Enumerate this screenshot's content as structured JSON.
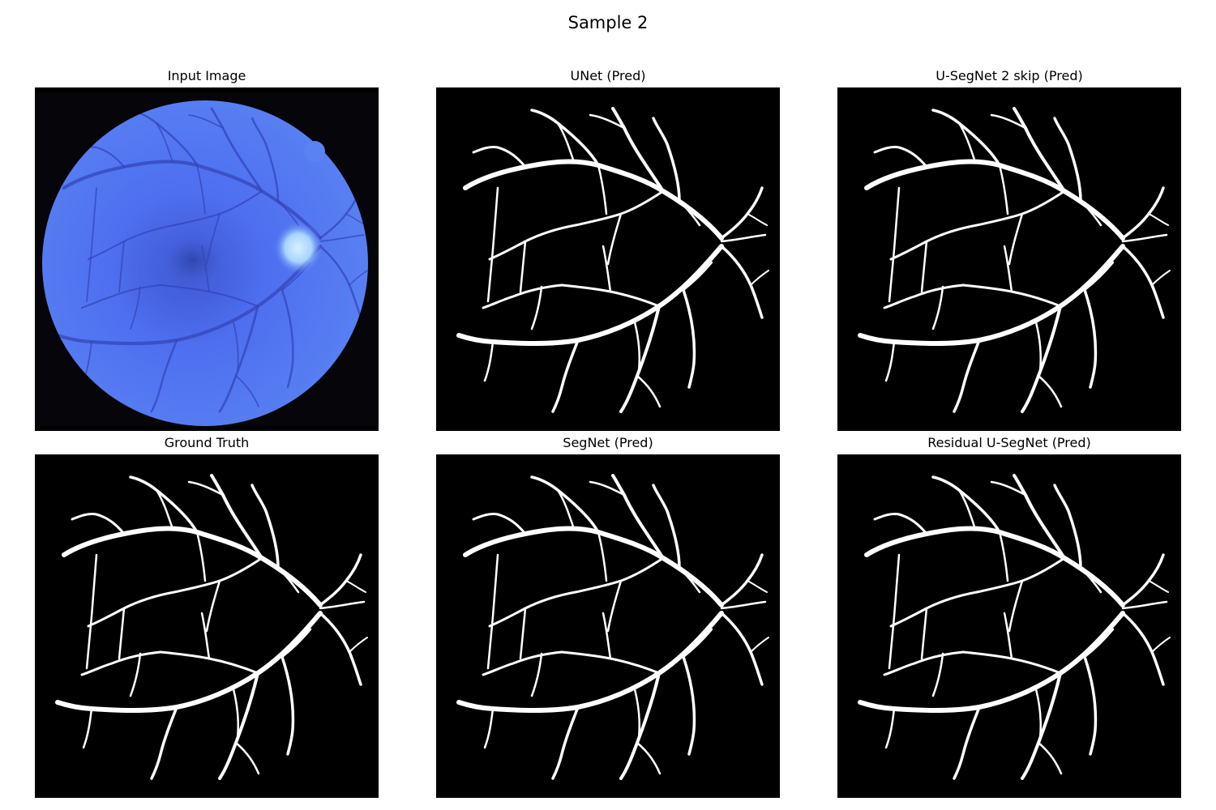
{
  "figure": {
    "title": "Sample 2"
  },
  "panels": [
    {
      "title": "Input Image",
      "kind": "fundus"
    },
    {
      "title": "UNet (Pred)",
      "kind": "mask"
    },
    {
      "title": "U-SegNet 2 skip (Pred)",
      "kind": "mask"
    },
    {
      "title": "Ground Truth",
      "kind": "mask"
    },
    {
      "title": "SegNet (Pred)",
      "kind": "mask"
    },
    {
      "title": "Residual U-SegNet (Pred)",
      "kind": "mask"
    }
  ],
  "colors": {
    "background": "#000000",
    "vessel_mask": "#ffffff",
    "fundus_fill": "#4f74f0",
    "fundus_vessel": "#3446b8",
    "optic_disc": "#bfe3ff"
  }
}
